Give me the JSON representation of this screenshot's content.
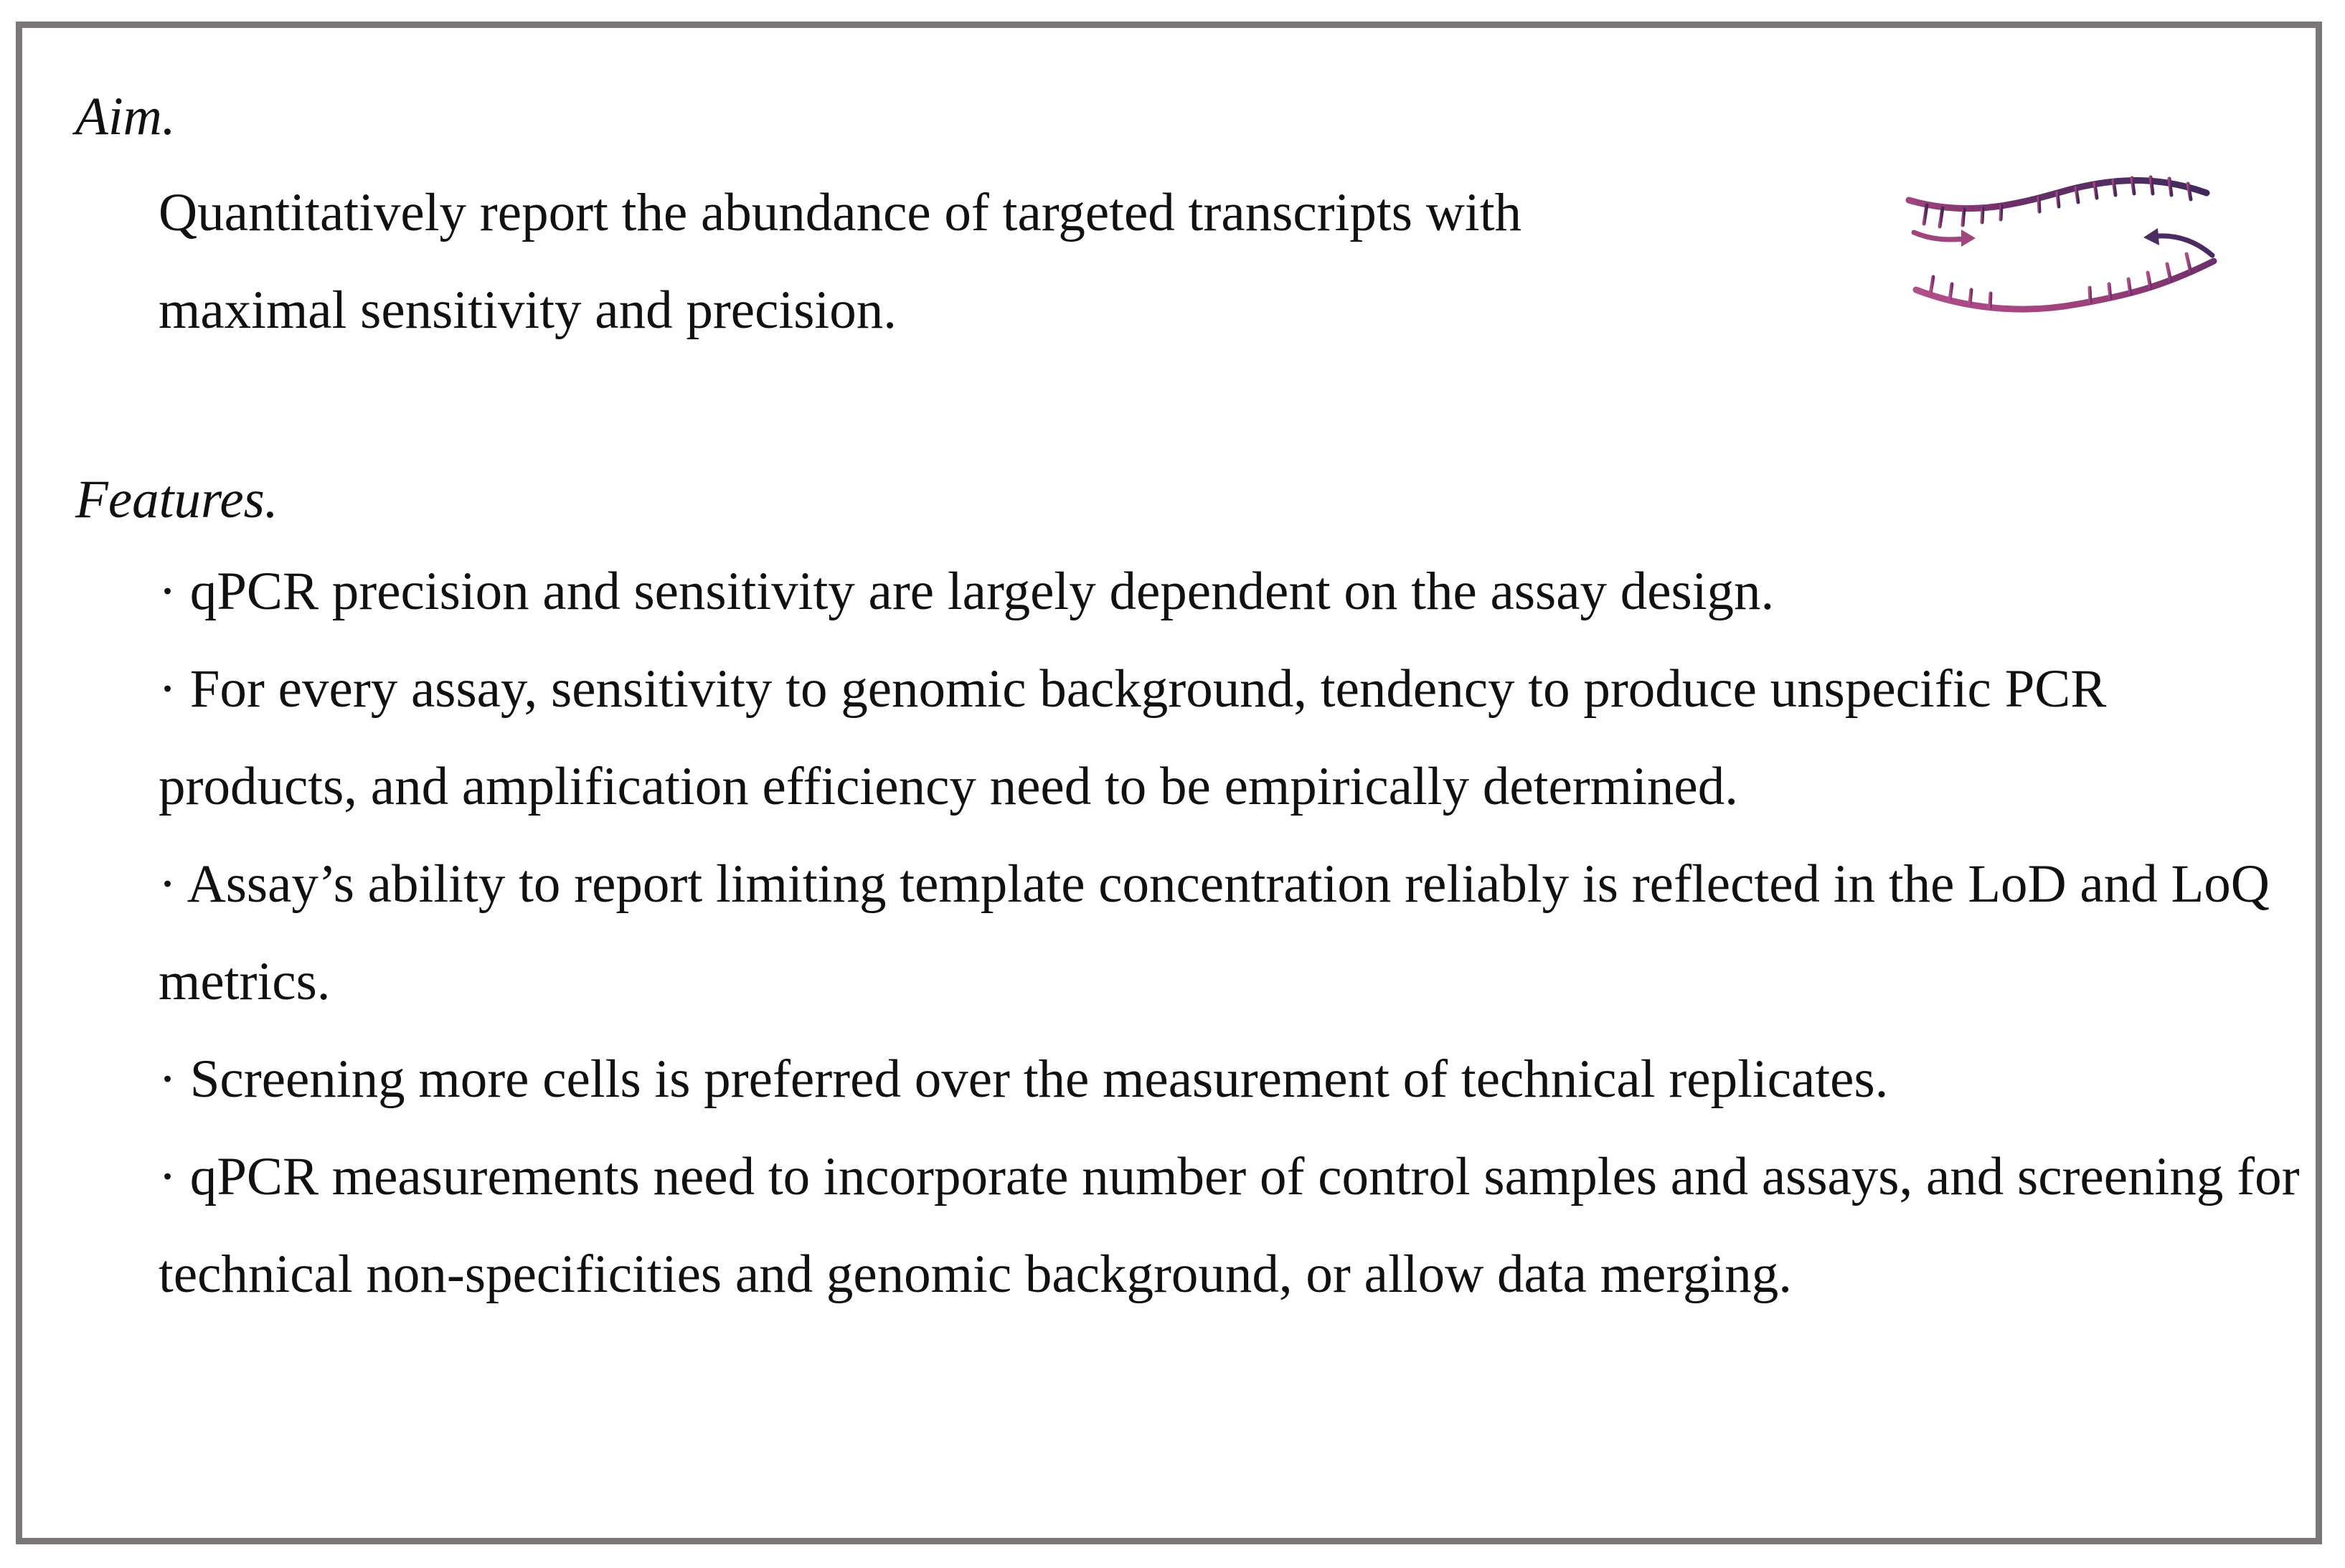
{
  "aim": {
    "heading": "Aim.",
    "body": "Quantitatively report the abundance of targeted transcripts with maximal sensitivity and precision."
  },
  "features": {
    "heading": "Features.",
    "items": [
      "· qPCR precision and sensitivity are largely dependent on the assay design.",
      "· For every assay, sensitivity to genomic background, tendency to produce unspecific PCR products, and amplification efficiency need to be empirically determined.",
      "· Assay’s ability to report limiting template concentration reliably is reflected in the LoD and LoQ metrics.",
      "· Screening more cells is preferred over the measurement of technical replicates.",
      "· qPCR measurements need to incorporate number of control samples and assays, and screening for technical non-specificities and genomic background, or allow data merging."
    ]
  },
  "icon": {
    "name": "dna-primer-strands-icon",
    "colors": {
      "top_strand": "#5a2f6e",
      "bottom_strand": "#a0457e"
    }
  },
  "colors": {
    "border": "#7b7778",
    "text": "#111111"
  }
}
